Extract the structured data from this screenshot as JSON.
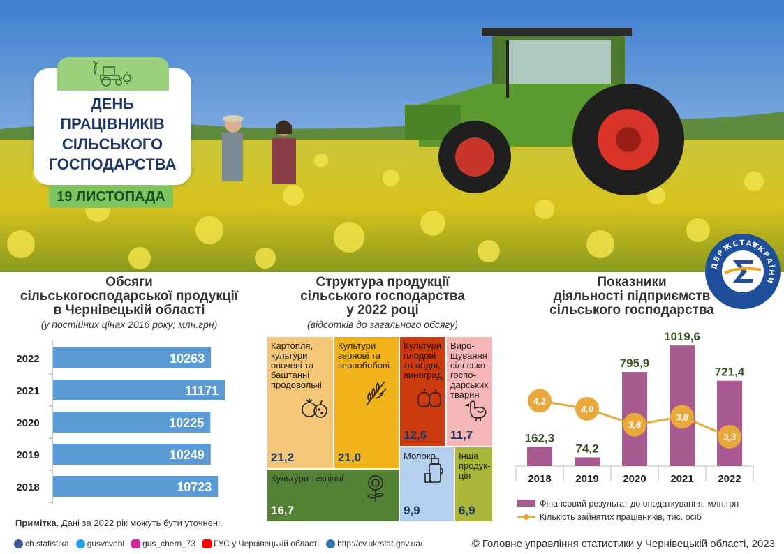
{
  "hero": {
    "title_lines": [
      "ДЕНЬ",
      "ПРАЦІВНИКІВ",
      "СІЛЬСЬКОГО",
      "ГОСПОДАРСТВА"
    ],
    "date": "19 ЛИСТОПАДА",
    "logo_text": "ДЕРЖСТАТ УКРАЇНИ"
  },
  "left": {
    "title_lines": [
      "Обсяги",
      "сільськогосподарської продукції",
      "в Чернівецькій області"
    ],
    "subtitle": "(у постійних цінах 2016 року; млн.грн)"
  },
  "middle": {
    "title_lines": [
      "Структура продукції",
      "сільського господарства",
      "у 2022 році"
    ],
    "subtitle": "(відсотків до загального обсягу)"
  },
  "right": {
    "title_lines": [
      "Показники",
      "діяльності підприємств",
      "сільського господарства"
    ]
  },
  "note": {
    "label": "Примітка.",
    "text": " Дані за 2022  рік можуть бути уточнені."
  },
  "footer": {
    "links": [
      {
        "icon": "facebook-icon",
        "text": "ch.statistika",
        "color": "#3b5998"
      },
      {
        "icon": "twitter-icon",
        "text": "gusvcvobl",
        "color": "#1da1f2"
      },
      {
        "icon": "instagram-icon",
        "text": "gus_chern_73",
        "color": "#d6249f"
      },
      {
        "icon": "youtube-icon",
        "text": "ГУС у Чернівецькій області",
        "color": "#ff0000"
      },
      {
        "icon": "globe-icon",
        "text": "http://cv.ukrstat.gov.ua/",
        "color": "#2e75b6"
      }
    ],
    "copyright": "© Головне управління статистики у Чернівецькій  області, 2023"
  },
  "chart_data": [
    {
      "type": "bar",
      "orientation": "horizontal",
      "categories": [
        "2022",
        "2021",
        "2020",
        "2019",
        "2018"
      ],
      "values": [
        10263,
        11171,
        10225,
        10249,
        10723
      ],
      "labels": [
        "10263",
        "11171",
        "10225",
        "10249",
        "10723"
      ],
      "bar_color": "#5b9bd5",
      "xlim": [
        0,
        11800
      ]
    },
    {
      "type": "treemap",
      "cells": [
        {
          "label": "Картопля, культури овочеві та баштанні продовольчі",
          "lines": [
            "Картопля,",
            "культури",
            "овочеві та",
            "баштанні",
            "продовольчі"
          ],
          "value": "21,2",
          "color": "#f4c678",
          "icon": "vegetables-icon"
        },
        {
          "label": "Культури зернові та зернобобові",
          "lines": [
            "Культури",
            "зернові та",
            "зернобобові"
          ],
          "value": "21,0",
          "color": "#f2b41a",
          "icon": "wheat-icon"
        },
        {
          "label": "Культури плодові та ягідні, виноград",
          "lines": [
            "Культури",
            "плодові",
            "та ягідні,",
            "виноград"
          ],
          "value": "12,6",
          "color": "#cc3a10",
          "icon": "apples-icon"
        },
        {
          "label": "Вирощування сільськогосподарських тварин",
          "lines": [
            "Виро-",
            "щування",
            "сільсько-",
            "госпо-",
            "дарських",
            "тварин"
          ],
          "value": "11,7",
          "color": "#f4b6b6",
          "icon": "chicken-icon"
        },
        {
          "label": "Культури технічні",
          "lines": [
            "Культури технічні"
          ],
          "value": "16,7",
          "color": "#548235",
          "icon": "sunflower-icon"
        },
        {
          "label": "Молоко",
          "lines": [
            "Молоко"
          ],
          "value": "9,9",
          "color": "#b4d0ee",
          "icon": "milk-icon"
        },
        {
          "label": "Інша продукція",
          "lines": [
            "Інша",
            "продук-",
            "ція"
          ],
          "value": "6,9",
          "color": "#a9b63a",
          "icon": ""
        }
      ]
    },
    {
      "type": "bar+line",
      "categories": [
        "2018",
        "2019",
        "2020",
        "2021",
        "2022"
      ],
      "series": [
        {
          "name": "Фінансовий результат до оподаткування, млн.грн",
          "type": "bar",
          "values": [
            162.3,
            74.2,
            795.9,
            1019.6,
            721.4
          ],
          "labels": [
            "162,3",
            "74,2",
            "795,9",
            "1019,6",
            "721,4"
          ],
          "color": "#a85a90"
        },
        {
          "name": "Кількість зайнятих працівників, тис. осіб",
          "type": "line",
          "values": [
            4.2,
            4.0,
            3.6,
            3.8,
            3.3
          ],
          "labels": [
            "4,2",
            "4,0",
            "3,6",
            "3,8",
            "3,3"
          ],
          "color": "#e8a83a"
        }
      ],
      "bar_ylim": [
        0,
        1050
      ],
      "line_ylim": [
        0,
        6
      ]
    }
  ]
}
